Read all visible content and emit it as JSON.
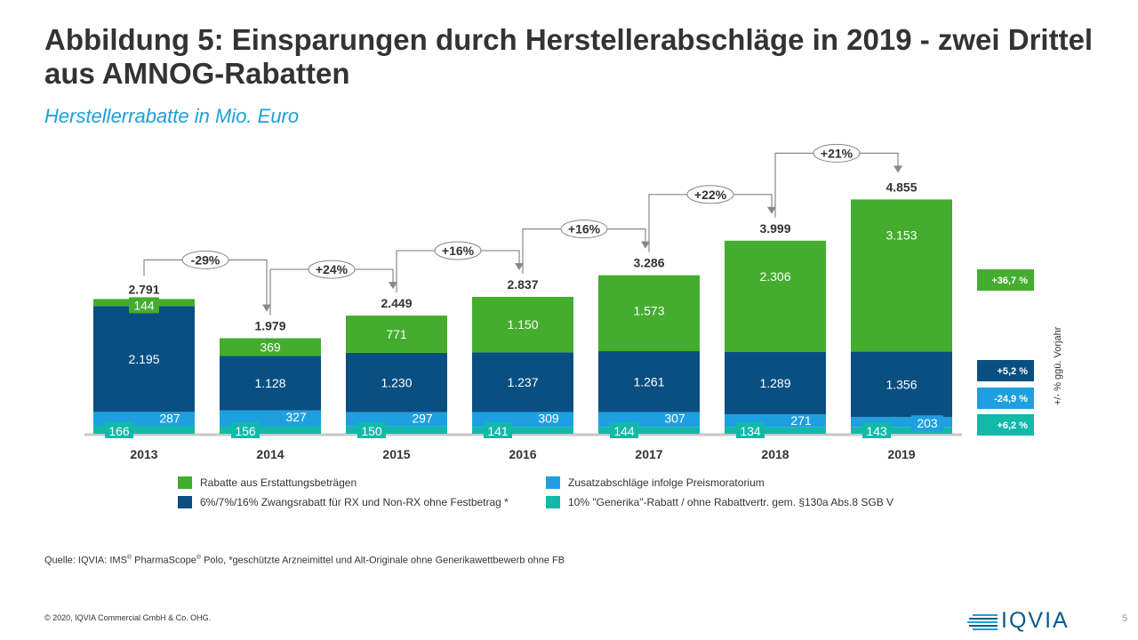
{
  "header": {
    "title": "Abbildung 5: Einsparungen durch Herstellerabschläge in 2019 - zwei Drittel aus AMNOG-Rabatten",
    "subtitle": "Herstellerrabatte in Mio. Euro"
  },
  "chart_data": {
    "type": "bar",
    "stacked": true,
    "title": "Herstellerrabatte in Mio. Euro",
    "categories": [
      "2013",
      "2014",
      "2015",
      "2016",
      "2017",
      "2018",
      "2019"
    ],
    "series": [
      {
        "name": "10% \"Generika\"-Rabatt / ohne Rabattvertr. gem. §130a Abs.8 SGB V",
        "color": "#12b9a8",
        "values": [
          166,
          156,
          150,
          141,
          144,
          134,
          143
        ],
        "labels": [
          "166",
          "156",
          "150",
          "141",
          "144",
          "134",
          "143"
        ]
      },
      {
        "name": "Zusatzabschläge infolge Preismoratorium",
        "color": "#1ea0e0",
        "values": [
          287,
          327,
          297,
          309,
          307,
          271,
          203
        ],
        "labels": [
          "287",
          "327",
          "297",
          "309",
          "307",
          "271",
          "203"
        ]
      },
      {
        "name": "6%/7%/16% Zwangsrabatt für RX und Non-RX ohne Festbetrag *",
        "color": "#0a4f82",
        "values": [
          2195,
          1128,
          1230,
          1237,
          1261,
          1289,
          1356
        ],
        "labels": [
          "2.195",
          "1.128",
          "1.230",
          "1.237",
          "1.261",
          "1.289",
          "1.356"
        ]
      },
      {
        "name": "Rabatte aus Erstattungsbeträgen",
        "color": "#44ad2e",
        "values": [
          144,
          369,
          771,
          1150,
          1573,
          2306,
          3153
        ],
        "labels": [
          "144",
          "369",
          "771",
          "1.150",
          "1.573",
          "2.306",
          "3.153"
        ]
      }
    ],
    "totals": [
      2791,
      1979,
      2449,
      2837,
      3286,
      3999,
      4855
    ],
    "total_labels": [
      "2.791",
      "1.979",
      "2.449",
      "2.837",
      "3.286",
      "3.999",
      "4.855"
    ],
    "changes": [
      "-29%",
      "+24%",
      "+16%",
      "+16%",
      "+22%",
      "+21%"
    ],
    "yoy_2019": [
      {
        "series": "Rabatte aus Erstattungsbeträgen",
        "label": "+36,7 %",
        "color": "#44ad2e"
      },
      {
        "series": "6%/7%/16% Zwangsrabatt",
        "label": "+5,2 %",
        "color": "#0a4f82"
      },
      {
        "series": "Zusatzabschläge infolge Preismoratorium",
        "label": "-24,9 %",
        "color": "#1ea0e0"
      },
      {
        "series": "10% Generika-Rabatt",
        "label": "+6,2 %",
        "color": "#12b9a8"
      }
    ],
    "yoy_axis_label": "+/- % ggü. Vorjahr",
    "ylim": [
      0,
      5000
    ],
    "grid": false,
    "legend_position": "bottom"
  },
  "legend": [
    {
      "label": "Rabatte aus Erstattungsbeträgen",
      "color": "#44ad2e"
    },
    {
      "label": "Zusatzabschläge infolge Preismoratorium",
      "color": "#1ea0e0"
    },
    {
      "label": "6%/7%/16% Zwangsrabatt  für RX und Non-RX  ohne Festbetrag *",
      "color": "#0a4f82"
    },
    {
      "label": "10% \"Generika\"-Rabatt  / ohne Rabattvertr.  gem. §130a Abs.8 SGB V",
      "color": "#12b9a8"
    }
  ],
  "footer": {
    "source_prefix": "Quelle: IQVIA:  IMS",
    "reg": "®",
    "source_mid": " PharmaScope",
    "source_suffix": " Polo, *geschützte Arzneimittel und Alt-Originale ohne Generikawettbewerb ohne FB",
    "copyright": "© 2020, IQVIA Commercial GmbH & Co. OHG.",
    "page_number": "5",
    "logo_text": "IQVIA"
  }
}
